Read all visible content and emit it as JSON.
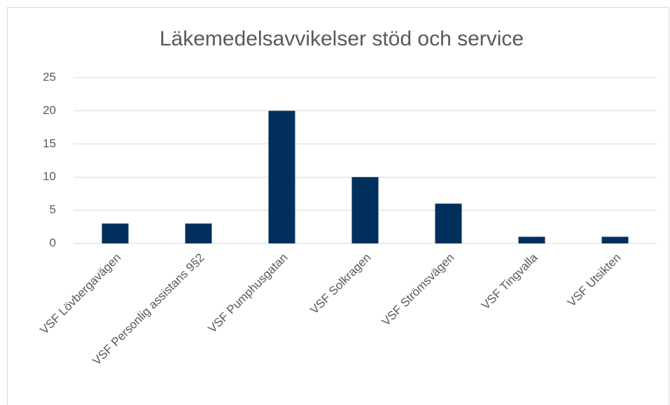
{
  "chart_data": {
    "type": "bar",
    "title": "Läkemedelsavvikelser stöd och service",
    "categories": [
      "VSF Lövbergavägen",
      "VSF Personlig assistans 9§2",
      "VSF Pumphusgatan",
      "VSF Solkragen",
      "VSF Strömsvägen",
      "VSF Tingvalla",
      "VSF Utsikten"
    ],
    "values": [
      3,
      3,
      20,
      10,
      6,
      1,
      1
    ],
    "color": "#002f5e",
    "ylim": [
      0,
      25
    ],
    "yticks": [
      0,
      5,
      10,
      15,
      20,
      25
    ],
    "grid": true
  }
}
